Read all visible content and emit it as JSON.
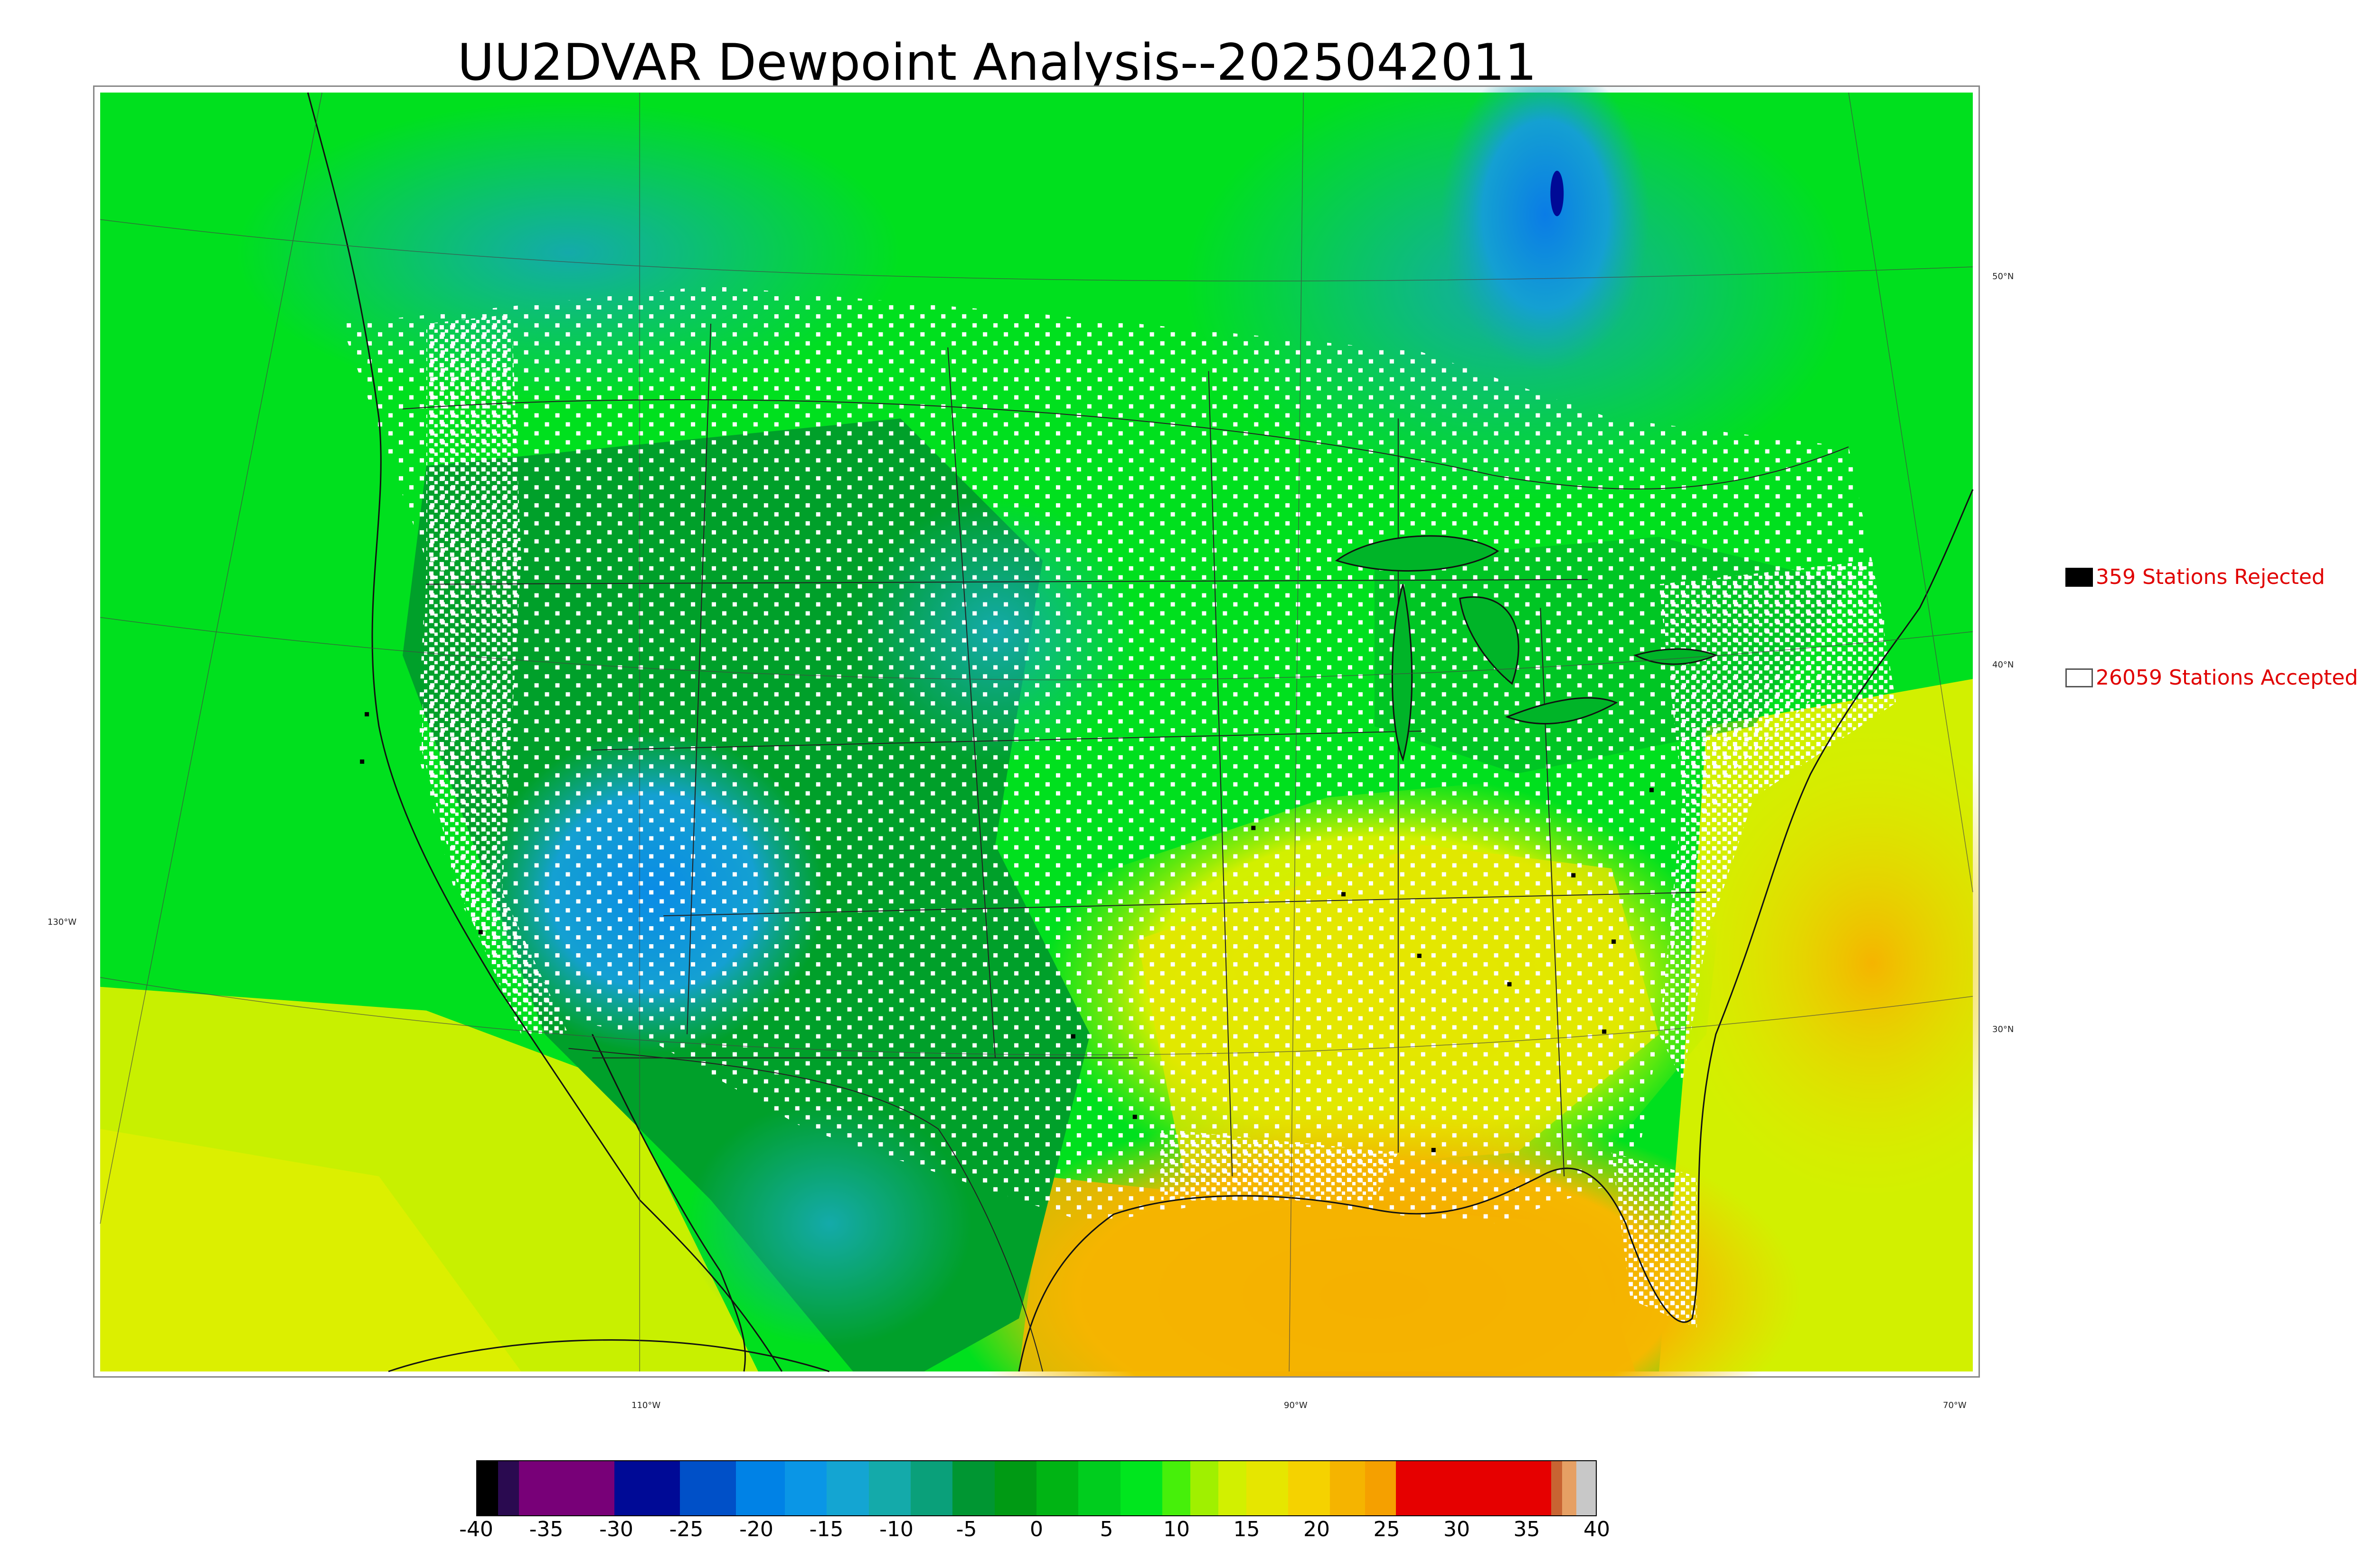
{
  "title": "UU2DVAR Dewpoint Analysis--2025042011",
  "legend": [
    {
      "label": "359 Stations Rejected",
      "swatch": "#000000"
    },
    {
      "label": "26059 Stations Accepted",
      "swatch": "#ffffff"
    }
  ],
  "latitude_labels": [
    "50°N",
    "40°N",
    "30°N"
  ],
  "longitude_labels": [
    "130°W",
    "110°W",
    "90°W",
    "70°W"
  ],
  "colorbar": {
    "min": -40,
    "max": 40,
    "ticks": [
      "-40",
      "-35",
      "-30",
      "-25",
      "-20",
      "-15",
      "-10",
      "-5",
      "0",
      "5",
      "10",
      "15",
      "20",
      "25",
      "30",
      "35",
      "40"
    ],
    "segments": [
      {
        "from": -40,
        "to": -38.5,
        "color": "#000000"
      },
      {
        "from": -38.5,
        "to": -37,
        "color": "#2a0a50"
      },
      {
        "from": -37,
        "to": -30.2,
        "color": "#780078"
      },
      {
        "from": -30.2,
        "to": -25.5,
        "color": "#000a96"
      },
      {
        "from": -25.5,
        "to": -21.5,
        "color": "#0050c8"
      },
      {
        "from": -21.5,
        "to": -18,
        "color": "#0082e6"
      },
      {
        "from": -18,
        "to": -15,
        "color": "#0a96e6"
      },
      {
        "from": -15,
        "to": -12,
        "color": "#14a5d2"
      },
      {
        "from": -12,
        "to": -9,
        "color": "#14aaaa"
      },
      {
        "from": -9,
        "to": -6,
        "color": "#0aa07a"
      },
      {
        "from": -6,
        "to": -3,
        "color": "#009632"
      },
      {
        "from": -3,
        "to": 0,
        "color": "#009a14"
      },
      {
        "from": 0,
        "to": 3,
        "color": "#00b414"
      },
      {
        "from": 3,
        "to": 6,
        "color": "#00cd1e"
      },
      {
        "from": 6,
        "to": 9,
        "color": "#00e61e"
      },
      {
        "from": 9,
        "to": 11,
        "color": "#46f00a"
      },
      {
        "from": 11,
        "to": 13,
        "color": "#a0f000"
      },
      {
        "from": 13,
        "to": 15,
        "color": "#d2f000"
      },
      {
        "from": 15,
        "to": 18,
        "color": "#e6e600"
      },
      {
        "from": 18,
        "to": 21,
        "color": "#f5d200"
      },
      {
        "from": 21,
        "to": 23.5,
        "color": "#f5b400"
      },
      {
        "from": 23.5,
        "to": 25.7,
        "color": "#f5a000"
      },
      {
        "from": 25.7,
        "to": 36.8,
        "color": "#e60000"
      },
      {
        "from": 36.8,
        "to": 37.6,
        "color": "#c86432"
      },
      {
        "from": 37.6,
        "to": 38.6,
        "color": "#e6a064"
      },
      {
        "from": 38.6,
        "to": 40,
        "color": "#c8c8c8"
      }
    ]
  }
}
